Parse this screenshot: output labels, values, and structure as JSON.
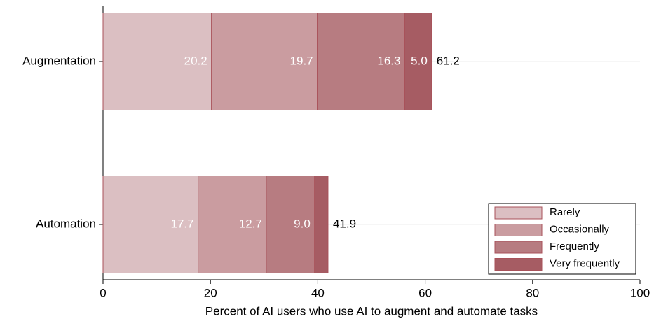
{
  "chart_data": {
    "type": "stacked-barh",
    "categories": [
      "Augmentation",
      "Automation"
    ],
    "series": [
      {
        "name": "Rarely",
        "color": "#dbbfc2",
        "values": [
          20.2,
          17.7
        ]
      },
      {
        "name": "Occasionally",
        "color": "#ca9ca0",
        "values": [
          19.7,
          12.7
        ]
      },
      {
        "name": "Frequently",
        "color": "#b77c81",
        "values": [
          16.3,
          9.0
        ],
        "value_labels": [
          "16.3",
          "9.0"
        ]
      },
      {
        "name": "Very frequently",
        "color": "#a65c63",
        "values": [
          5.0,
          2.5
        ],
        "value_labels": [
          "5.0",
          null
        ]
      }
    ],
    "totals": [
      61.2,
      41.9
    ],
    "xlabel": "Percent of AI users who use AI to augment and automate tasks",
    "xlim": [
      0,
      100
    ],
    "xticks": [
      0,
      20,
      40,
      60,
      80,
      100
    ],
    "grid": true,
    "legend": "lower right"
  }
}
